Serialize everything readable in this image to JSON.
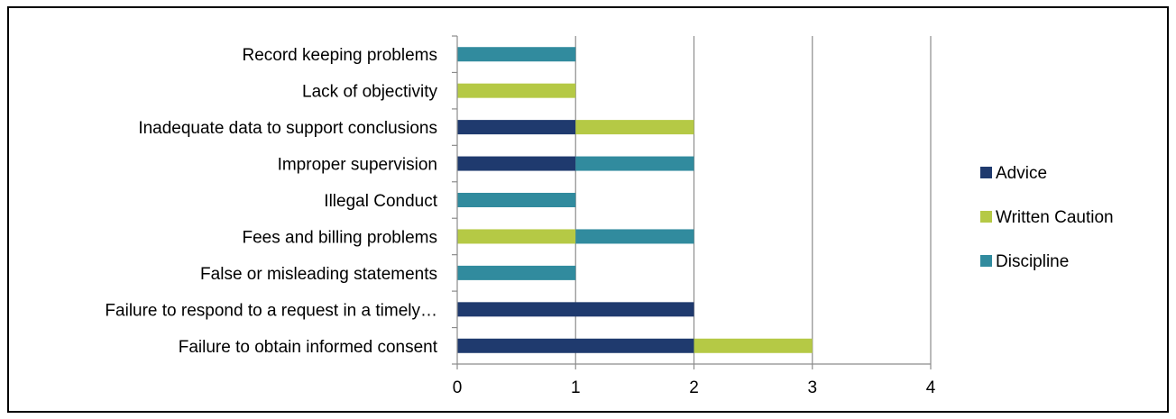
{
  "chart_data": {
    "type": "bar",
    "orientation": "horizontal",
    "stacked": true,
    "categories": [
      "Failure to obtain informed consent",
      "Failure to respond to a request in a timely…",
      "False or misleading statements",
      "Fees and billing problems",
      "Illegal Conduct",
      "Improper supervision",
      "Inadequate data to support conclusions",
      "Lack of objectivity",
      "Record keeping problems"
    ],
    "series": [
      {
        "name": "Advice",
        "color": "#1f3a6e",
        "values": [
          2,
          2,
          0,
          0,
          0,
          1,
          1,
          0,
          0
        ]
      },
      {
        "name": "Written Caution",
        "color": "#b5c945",
        "values": [
          1,
          0,
          0,
          1,
          0,
          0,
          1,
          1,
          0
        ]
      },
      {
        "name": "Discipline",
        "color": "#318b9e",
        "values": [
          0,
          0,
          1,
          1,
          1,
          1,
          0,
          0,
          1
        ]
      }
    ],
    "xlim": [
      0,
      4
    ],
    "xticks": [
      "0",
      "1",
      "2",
      "3",
      "4"
    ],
    "grid": "vertical",
    "legend": "right",
    "title": "",
    "xlabel": "",
    "ylabel": ""
  }
}
